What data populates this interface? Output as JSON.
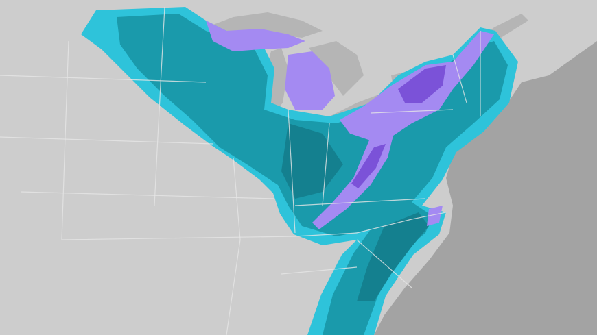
{
  "map": {
    "colors": {
      "land": "#cdcdcd",
      "ocean": "#a3a3a3",
      "lakes": "#b5b5b5",
      "borders": "#e6e6e6",
      "precip_light": "#2ec3da",
      "precip_moderate": "#1a9aab",
      "precip_heavy": "#14808f",
      "snow_light": "#a48af2",
      "snow_heavy": "#7b52d8"
    }
  }
}
